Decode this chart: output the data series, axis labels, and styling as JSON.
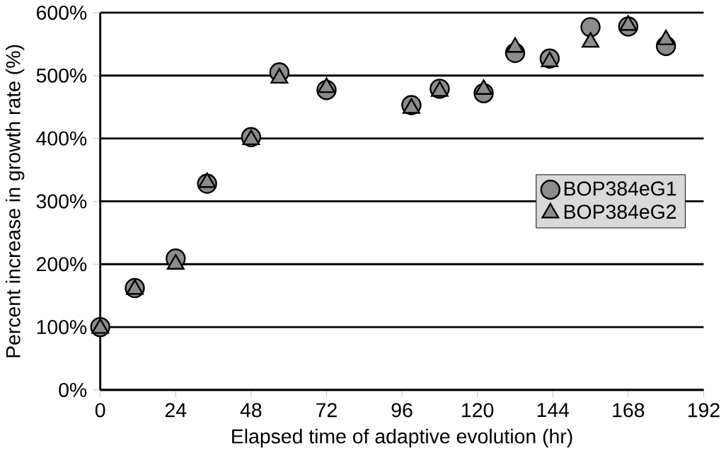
{
  "chart_data": {
    "type": "scatter",
    "xlabel": "Elapsed time of adaptive evolution (hr)",
    "ylabel": "Percent increase in growth rate (%)",
    "x": [
      0,
      11,
      24,
      34,
      48,
      57,
      72,
      99,
      108,
      122,
      132,
      143,
      156,
      168,
      180
    ],
    "series": [
      {
        "name": "BOP384eG1",
        "color": "#8c8c8c",
        "marker": "circle",
        "values": [
          100,
          162,
          209,
          328,
          402,
          505,
          477,
          453,
          479,
          472,
          536,
          527,
          577,
          578,
          547
        ]
      },
      {
        "name": "BOP384eG2",
        "color": "#8c8c8c",
        "marker": "triangle",
        "values": [
          98,
          160,
          200,
          330,
          398,
          496,
          481,
          448,
          475,
          478,
          545,
          522,
          553,
          580,
          557
        ]
      }
    ],
    "xlim": [
      0,
      192
    ],
    "xticks": [
      0,
      24,
      48,
      72,
      96,
      120,
      144,
      168,
      192
    ],
    "ylim": [
      0,
      600
    ],
    "yticks": [
      {
        "value": 0,
        "label": "0%"
      },
      {
        "value": 100,
        "label": "100%"
      },
      {
        "value": 200,
        "label": "200%"
      },
      {
        "value": 300,
        "label": "300%"
      },
      {
        "value": 400,
        "label": "400%"
      },
      {
        "value": 500,
        "label": "500%"
      },
      {
        "value": 600,
        "label": "600%"
      }
    ],
    "grid": "y",
    "legend": "right"
  }
}
